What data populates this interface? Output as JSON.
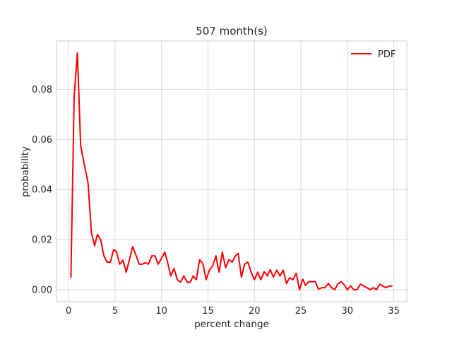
{
  "chart_data": {
    "type": "line",
    "title": "507 month(s)",
    "xlabel": "percent change",
    "ylabel": "probability",
    "xlim": [
      -1.3,
      36.4
    ],
    "ylim": [
      -0.0048,
      0.0993
    ],
    "xticks": [
      0,
      5,
      10,
      15,
      20,
      25,
      30,
      35
    ],
    "yticks": [
      0.0,
      0.02,
      0.04,
      0.06,
      0.08
    ],
    "ytick_labels": [
      "0.00",
      "0.02",
      "0.04",
      "0.06",
      "0.08"
    ],
    "grid": true,
    "legend": {
      "position": "top-right",
      "entries": [
        "PDF"
      ]
    },
    "series": [
      {
        "name": "PDF",
        "color": "#ff0000",
        "x": [
          0.25,
          0.6,
          0.95,
          1.3,
          1.8,
          2.1,
          2.45,
          2.8,
          3.1,
          3.45,
          3.8,
          4.15,
          4.5,
          4.85,
          5.15,
          5.5,
          5.85,
          6.2,
          6.55,
          6.9,
          7.25,
          7.6,
          7.95,
          8.3,
          8.6,
          8.95,
          9.3,
          9.65,
          10.0,
          10.35,
          10.65,
          11.0,
          11.35,
          11.7,
          12.05,
          12.4,
          12.75,
          13.1,
          13.4,
          13.75,
          14.1,
          14.45,
          14.8,
          15.15,
          15.5,
          15.85,
          16.2,
          16.55,
          16.9,
          17.25,
          17.6,
          17.95,
          18.25,
          18.6,
          18.95,
          19.3,
          19.65,
          20.0,
          20.35,
          20.7,
          21.05,
          21.4,
          21.7,
          22.05,
          22.4,
          22.75,
          23.1,
          23.45,
          23.8,
          24.15,
          24.5,
          24.85,
          25.2,
          25.5,
          25.85,
          26.2,
          26.55,
          26.9,
          27.25,
          27.6,
          27.95,
          28.3,
          28.65,
          29.0,
          29.35,
          29.7,
          30.0,
          30.35,
          30.7,
          31.05,
          31.4,
          31.75,
          32.1,
          32.45,
          32.8,
          33.15,
          33.5,
          33.8,
          34.15,
          34.5,
          34.85
        ],
        "y": [
          0.0048,
          0.077,
          0.0945,
          0.0575,
          0.048,
          0.0425,
          0.023,
          0.0175,
          0.022,
          0.02,
          0.0135,
          0.011,
          0.011,
          0.016,
          0.0152,
          0.0102,
          0.0118,
          0.007,
          0.012,
          0.0172,
          0.0138,
          0.0102,
          0.0102,
          0.0108,
          0.0102,
          0.0135,
          0.0135,
          0.0102,
          0.0125,
          0.015,
          0.011,
          0.0055,
          0.0085,
          0.004,
          0.003,
          0.0055,
          0.003,
          0.003,
          0.0055,
          0.004,
          0.012,
          0.0105,
          0.004,
          0.0078,
          0.0095,
          0.0135,
          0.007,
          0.015,
          0.0088,
          0.012,
          0.011,
          0.0135,
          0.0145,
          0.005,
          0.0102,
          0.011,
          0.007,
          0.004,
          0.007,
          0.004,
          0.0072,
          0.0055,
          0.008,
          0.005,
          0.0078,
          0.0055,
          0.0078,
          0.0025,
          0.0048,
          0.004,
          0.0065,
          0.0,
          0.0042,
          0.0018,
          0.0032,
          0.0032,
          0.0032,
          0.0002,
          0.0008,
          0.0008,
          0.0025,
          0.0008,
          0.0,
          0.0025,
          0.0032,
          0.0018,
          0.0,
          0.0015,
          0.0,
          0.0,
          0.0022,
          0.0015,
          0.0008,
          0.0,
          0.0008,
          0.0,
          0.0022,
          0.0015,
          0.0008,
          0.0015,
          0.0015
        ]
      }
    ]
  }
}
